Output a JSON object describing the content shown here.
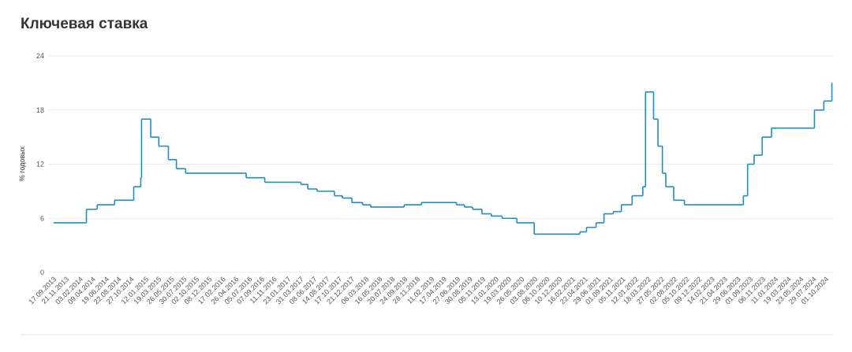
{
  "chart_data": {
    "type": "line",
    "step": "post",
    "title": "Ключевая ставка",
    "y_label": "% годовых",
    "grid": true,
    "x": [
      "13.09.2013",
      "03.03.2014",
      "28.04.2014",
      "28.07.2014",
      "05.11.2014",
      "12.12.2014",
      "16.12.2014",
      "02.02.2015",
      "16.03.2015",
      "05.05.2015",
      "16.06.2015",
      "03.08.2015",
      "14.06.2016",
      "19.09.2016",
      "27.03.2017",
      "02.05.2017",
      "19.06.2017",
      "18.09.2017",
      "30.10.2017",
      "18.12.2017",
      "12.02.2018",
      "26.03.2018",
      "17.09.2018",
      "17.12.2018",
      "17.06.2019",
      "29.07.2019",
      "09.09.2019",
      "28.10.2019",
      "16.12.2019",
      "10.02.2020",
      "27.04.2020",
      "27.07.2020",
      "22.03.2021",
      "26.04.2021",
      "15.06.2021",
      "26.07.2021",
      "13.09.2021",
      "25.10.2021",
      "20.12.2021",
      "14.02.2022",
      "28.02.2022",
      "11.04.2022",
      "04.05.2022",
      "27.05.2022",
      "14.06.2022",
      "25.07.2022",
      "19.09.2022",
      "24.07.2023",
      "15.08.2023",
      "18.09.2023",
      "30.10.2023",
      "18.12.2023",
      "29.07.2024",
      "16.09.2024",
      "28.10.2024"
    ],
    "series": [
      {
        "name": "Ключевая ставка",
        "color": "#1b8ec2",
        "values": [
          5.5,
          7,
          7.5,
          8,
          9.5,
          10.5,
          17,
          15,
          14,
          12.5,
          11.5,
          11,
          10.5,
          10,
          9.75,
          9.25,
          9,
          8.5,
          8.25,
          7.75,
          7.5,
          7.25,
          7.5,
          7.75,
          7.5,
          7.25,
          7,
          6.5,
          6.25,
          6,
          5.5,
          4.25,
          4.5,
          5,
          5.5,
          6.5,
          6.75,
          7.5,
          8.5,
          9.5,
          20,
          17,
          14,
          11,
          9.5,
          8,
          7.5,
          8.5,
          12,
          13,
          15,
          16,
          18,
          19,
          21
        ]
      }
    ],
    "xlim": [
      "13.09.2013",
      "30.10.2024"
    ],
    "xticks": [
      "17.09.2013",
      "21.11.2013",
      "03.02.2014",
      "09.04.2014",
      "19.06.2014",
      "22.08.2014",
      "27.10.2014",
      "12.01.2015",
      "19.03.2015",
      "26.05.2015",
      "30.07.2015",
      "02.10.2015",
      "08.12.2015",
      "17.02.2016",
      "26.04.2016",
      "05.07.2016",
      "07.09.2016",
      "11.11.2016",
      "23.01.2017",
      "31.03.2017",
      "08.06.2017",
      "14.08.2017",
      "17.10.2017",
      "21.12.2017",
      "06.03.2018",
      "16.05.2018",
      "20.07.2018",
      "24.09.2018",
      "28.11.2018",
      "11.02.2019",
      "17.04.2019",
      "27.06.2019",
      "30.08.2019",
      "05.11.2019",
      "13.01.2020",
      "19.03.2020",
      "26.05.2020",
      "03.08.2020",
      "06.10.2020",
      "10.12.2020",
      "16.02.2021",
      "22.04.2021",
      "29.06.2021",
      "01.09.2021",
      "05.11.2021",
      "12.01.2022",
      "18.03.2022",
      "27.05.2022",
      "02.08.2022",
      "05.10.2022",
      "09.12.2022",
      "14.02.2023",
      "21.04.2023",
      "29.06.2023",
      "01.09.2023",
      "06.11.2023",
      "11.01.2024",
      "19.03.2024",
      "23.05.2024",
      "29.07.2024",
      "01.10.2024"
    ],
    "ylim": [
      0,
      24
    ],
    "yticks": [
      0,
      6,
      12,
      18,
      24
    ]
  }
}
